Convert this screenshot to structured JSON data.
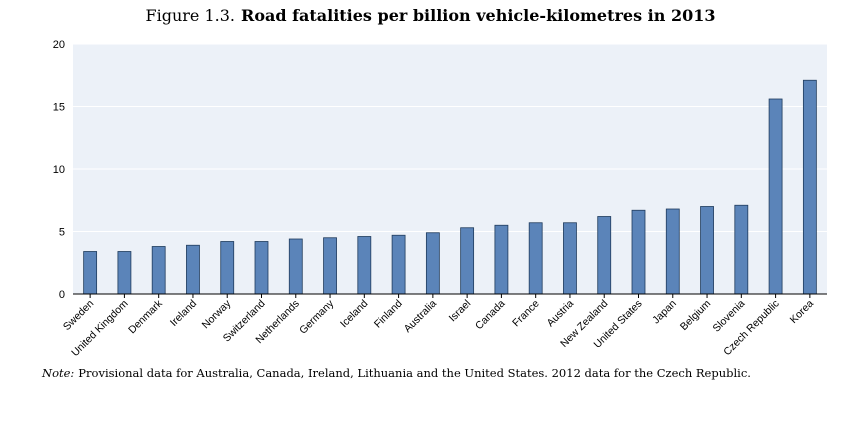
{
  "figure": {
    "label": "Figure 1.3.",
    "title": "Road fatalities per billion vehicle-kilometres in 2013"
  },
  "note": {
    "label": "Note:",
    "text": "Provisional data for Australia, Canada, Ireland, Lithuania and the United States. 2012 data for the Czech Republic."
  },
  "colors": {
    "bar_fill": "#5b84b9",
    "bar_stroke": "#1f3b5c",
    "plot_background": "#ecf1f8",
    "grid": "#ffffff"
  },
  "chart_data": {
    "type": "bar",
    "title": "Road fatalities per billion vehicle-kilometres in 2013",
    "xlabel": "",
    "ylabel": "",
    "ylim": [
      0,
      20
    ],
    "yticks": [
      0,
      5,
      10,
      15,
      20
    ],
    "grid": true,
    "legend": "none",
    "categories": [
      "Sweden",
      "United Kingdom",
      "Denmark",
      "Ireland",
      "Norway",
      "Switzerland",
      "Netherlands",
      "Germany",
      "Iceland",
      "Finland",
      "Australia",
      "Israel",
      "Canada",
      "France",
      "Austria",
      "New Zealand",
      "United States",
      "Japan",
      "Belgium",
      "Slovenia",
      "Czech Republic",
      "Korea"
    ],
    "values": [
      3.4,
      3.4,
      3.8,
      3.9,
      4.2,
      4.2,
      4.4,
      4.5,
      4.6,
      4.7,
      4.9,
      5.3,
      5.5,
      5.7,
      5.7,
      6.2,
      6.7,
      6.8,
      7.0,
      7.1,
      15.6,
      17.1
    ]
  }
}
